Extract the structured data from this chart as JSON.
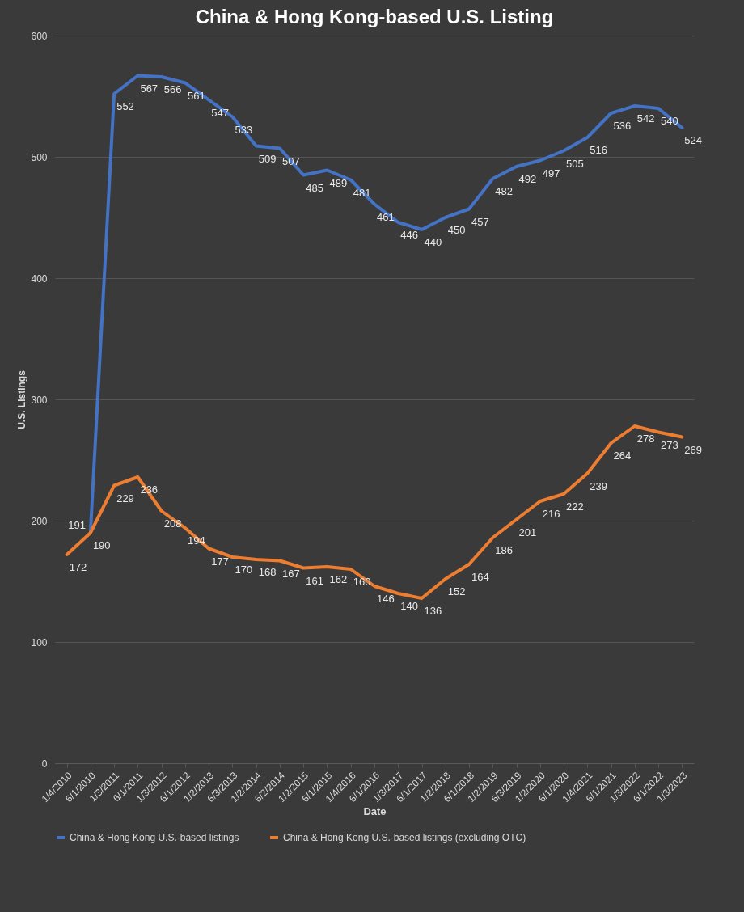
{
  "chart_data": {
    "type": "line",
    "title": "China & Hong Kong-based U.S. Listing",
    "xlabel": "Date",
    "ylabel": "U.S. Listings",
    "categories": [
      "1/4/2010",
      "6/1/2010",
      "1/3/2011",
      "6/1/2011",
      "1/3/2012",
      "6/1/2012",
      "1/2/2013",
      "6/3/2013",
      "1/2/2014",
      "6/2/2014",
      "1/2/2015",
      "6/1/2015",
      "1/4/2016",
      "6/1/2016",
      "1/3/2017",
      "6/1/2017",
      "1/2/2018",
      "6/1/2018",
      "1/2/2019",
      "6/3/2019",
      "1/2/2020",
      "6/1/2020",
      "1/4/2021",
      "6/1/2021",
      "1/3/2022",
      "6/1/2022",
      "1/3/2023"
    ],
    "series": [
      {
        "name": "China & Hong Kong U.S.-based listings",
        "color": "#4472c4",
        "values": [
          null,
          191,
          552,
          567,
          566,
          561,
          547,
          533,
          509,
          507,
          485,
          489,
          481,
          461,
          446,
          440,
          450,
          457,
          482,
          492,
          497,
          505,
          516,
          536,
          542,
          540,
          524
        ]
      },
      {
        "name": "China & Hong Kong U.S.-based listings (excluding OTC)",
        "color": "#ed7d31",
        "values": [
          172,
          190,
          229,
          236,
          208,
          194,
          177,
          170,
          168,
          167,
          161,
          162,
          160,
          146,
          140,
          136,
          152,
          164,
          186,
          201,
          216,
          222,
          239,
          264,
          278,
          273,
          269
        ]
      }
    ],
    "ylim": [
      0,
      600
    ],
    "yticks": [
      0,
      100,
      200,
      300,
      400,
      500,
      600
    ],
    "grid": "y",
    "legend": "bottom",
    "data_labels": true
  }
}
